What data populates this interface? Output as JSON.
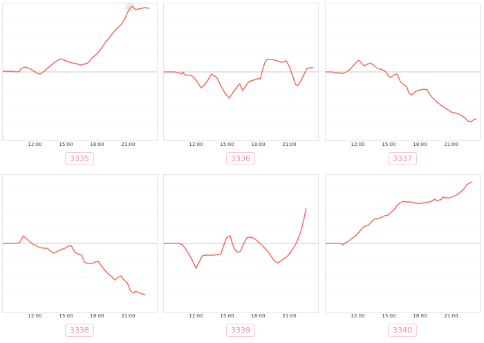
{
  "style": {
    "line_color": "#f4695f",
    "baseline_color": "#c9c9c9",
    "grid_color": "#f3f3f3",
    "plot_border_color": "#e4e4e4",
    "tick_label_color": "#3c3c3c",
    "badge_text_color": "#f48bb1",
    "badge_border_color": "#f9c7d8",
    "hover_marker_color": "#ececec",
    "background": "#ffffff"
  },
  "chart_data": [
    {
      "type": "line",
      "id_label": "3335",
      "x_tick_labels": [
        "12:00",
        "15:00",
        "18:00",
        "21:00"
      ],
      "x_tick_hours": [
        12,
        15,
        18,
        21
      ],
      "x_range_hours": [
        8.9,
        23.8
      ],
      "ylim": [
        -100,
        100
      ],
      "y_axis": "unlabeled; values relative to gray zero baseline",
      "baseline_value": 0,
      "grid": true,
      "legend": false,
      "clipped_title_fragment": "·······",
      "fragment_left_pct": 42,
      "marker": {
        "hour": 21.15,
        "value": 93
      },
      "points": [
        [
          8.9,
          1
        ],
        [
          9.4,
          1
        ],
        [
          9.8,
          1
        ],
        [
          10.2,
          0
        ],
        [
          10.5,
          1
        ],
        [
          10.7,
          5
        ],
        [
          11.0,
          7
        ],
        [
          11.3,
          6
        ],
        [
          11.6,
          4
        ],
        [
          11.9,
          1
        ],
        [
          12.2,
          -2
        ],
        [
          12.5,
          -3
        ],
        [
          12.8,
          0
        ],
        [
          13.2,
          5
        ],
        [
          13.6,
          10
        ],
        [
          14.0,
          15
        ],
        [
          14.5,
          19
        ],
        [
          14.8,
          17
        ],
        [
          15.2,
          15
        ],
        [
          15.6,
          13
        ],
        [
          16.0,
          12
        ],
        [
          16.4,
          10
        ],
        [
          16.7,
          11
        ],
        [
          17.1,
          13
        ],
        [
          17.5,
          20
        ],
        [
          17.9,
          25
        ],
        [
          18.2,
          30
        ],
        [
          18.5,
          36
        ],
        [
          18.8,
          43
        ],
        [
          19.1,
          48
        ],
        [
          19.3,
          52
        ],
        [
          19.6,
          58
        ],
        [
          20.0,
          64
        ],
        [
          20.3,
          68
        ],
        [
          20.6,
          75
        ],
        [
          20.9,
          85
        ],
        [
          21.2,
          93
        ],
        [
          21.4,
          95
        ],
        [
          21.7,
          90
        ],
        [
          22.0,
          91
        ],
        [
          22.3,
          92
        ],
        [
          22.6,
          93
        ],
        [
          23.0,
          92
        ]
      ]
    },
    {
      "type": "line",
      "id_label": "3336",
      "x_tick_labels": [
        "12:00",
        "15:00",
        "18:00",
        "21:00"
      ],
      "x_tick_hours": [
        12,
        15,
        18,
        21
      ],
      "x_range_hours": [
        8.9,
        23.8
      ],
      "ylim": [
        -100,
        100
      ],
      "y_axis": "unlabeled; values relative to gray zero baseline",
      "baseline_value": 0,
      "grid": true,
      "legend": false,
      "clipped_title_fragment": "··· ····· ···",
      "fragment_left_pct": 48,
      "points": [
        [
          8.9,
          0
        ],
        [
          9.5,
          0
        ],
        [
          9.9,
          0
        ],
        [
          10.3,
          -1
        ],
        [
          10.6,
          -3
        ],
        [
          10.75,
          0
        ],
        [
          10.9,
          -4
        ],
        [
          11.2,
          -5
        ],
        [
          11.5,
          -5
        ],
        [
          11.8,
          -8
        ],
        [
          12.1,
          -14
        ],
        [
          12.5,
          -23
        ],
        [
          12.8,
          -19
        ],
        [
          13.1,
          -13
        ],
        [
          13.5,
          -3
        ],
        [
          13.7,
          -5
        ],
        [
          14.0,
          -8
        ],
        [
          14.4,
          -20
        ],
        [
          14.8,
          -31
        ],
        [
          15.2,
          -38
        ],
        [
          15.6,
          -29
        ],
        [
          15.9,
          -23
        ],
        [
          16.2,
          -17
        ],
        [
          16.5,
          -27
        ],
        [
          16.8,
          -20
        ],
        [
          17.1,
          -14
        ],
        [
          17.5,
          -12
        ],
        [
          17.9,
          -10
        ],
        [
          18.2,
          -10
        ],
        [
          18.45,
          5
        ],
        [
          18.7,
          16
        ],
        [
          18.9,
          18
        ],
        [
          19.2,
          18
        ],
        [
          19.6,
          17
        ],
        [
          20.0,
          15
        ],
        [
          20.3,
          14
        ],
        [
          20.7,
          16
        ],
        [
          21.0,
          8
        ],
        [
          21.3,
          -5
        ],
        [
          21.6,
          -18
        ],
        [
          21.8,
          -20
        ],
        [
          22.1,
          -13
        ],
        [
          22.4,
          -4
        ],
        [
          22.7,
          5
        ],
        [
          23.0,
          6
        ],
        [
          23.3,
          6
        ]
      ]
    },
    {
      "type": "line",
      "id_label": "3337",
      "x_tick_labels": [
        "12:00",
        "15:00",
        "18:00",
        "21:00"
      ],
      "x_tick_hours": [
        12,
        15,
        18,
        21
      ],
      "x_range_hours": [
        8.9,
        23.8
      ],
      "ylim": [
        -100,
        100
      ],
      "y_axis": "unlabeled; values relative to gray zero baseline",
      "baseline_value": 0,
      "grid": true,
      "legend": false,
      "clipped_title_fragment": "····",
      "fragment_left_pct": 76,
      "points": [
        [
          8.9,
          0
        ],
        [
          9.5,
          0
        ],
        [
          9.9,
          -1
        ],
        [
          10.3,
          -2
        ],
        [
          10.6,
          -2
        ],
        [
          10.9,
          0
        ],
        [
          11.2,
          3
        ],
        [
          11.5,
          8
        ],
        [
          11.8,
          13
        ],
        [
          12.1,
          17
        ],
        [
          12.4,
          12
        ],
        [
          12.6,
          9
        ],
        [
          12.9,
          11
        ],
        [
          13.2,
          13
        ],
        [
          13.5,
          10
        ],
        [
          13.8,
          6
        ],
        [
          14.1,
          4
        ],
        [
          14.4,
          3
        ],
        [
          14.7,
          0
        ],
        [
          14.95,
          -6
        ],
        [
          15.2,
          -8
        ],
        [
          15.5,
          -4
        ],
        [
          15.8,
          -3
        ],
        [
          16.1,
          -14
        ],
        [
          16.4,
          -18
        ],
        [
          16.7,
          -21
        ],
        [
          16.95,
          -31
        ],
        [
          17.2,
          -33
        ],
        [
          17.6,
          -28
        ],
        [
          18.0,
          -26
        ],
        [
          18.4,
          -25
        ],
        [
          18.7,
          -26
        ],
        [
          19.0,
          -34
        ],
        [
          19.3,
          -39
        ],
        [
          19.6,
          -43
        ],
        [
          20.0,
          -48
        ],
        [
          20.3,
          -51
        ],
        [
          20.6,
          -54
        ],
        [
          21.0,
          -58
        ],
        [
          21.3,
          -59
        ],
        [
          21.6,
          -60
        ],
        [
          22.0,
          -63
        ],
        [
          22.3,
          -66
        ],
        [
          22.6,
          -71
        ],
        [
          22.9,
          -72
        ],
        [
          23.2,
          -69
        ],
        [
          23.4,
          -68
        ]
      ]
    },
    {
      "type": "line",
      "id_label": "3338",
      "x_tick_labels": [
        "12:00",
        "15:00",
        "18:00",
        "21:00"
      ],
      "x_tick_hours": [
        12,
        15,
        18,
        21
      ],
      "x_range_hours": [
        8.9,
        23.8
      ],
      "ylim": [
        -100,
        100
      ],
      "y_axis": "unlabeled; values relative to gray zero baseline",
      "baseline_value": 0,
      "grid": true,
      "legend": false,
      "points": [
        [
          8.9,
          0
        ],
        [
          9.3,
          0
        ],
        [
          9.7,
          0
        ],
        [
          10.1,
          0
        ],
        [
          10.5,
          1
        ],
        [
          10.9,
          11
        ],
        [
          11.1,
          8
        ],
        [
          11.4,
          4
        ],
        [
          11.7,
          0
        ],
        [
          11.9,
          -2
        ],
        [
          12.2,
          -4
        ],
        [
          12.5,
          -6
        ],
        [
          12.9,
          -7
        ],
        [
          13.2,
          -7
        ],
        [
          13.5,
          -11
        ],
        [
          13.8,
          -14
        ],
        [
          14.1,
          -12
        ],
        [
          14.5,
          -9
        ],
        [
          14.9,
          -7
        ],
        [
          15.2,
          -4
        ],
        [
          15.5,
          -3
        ],
        [
          15.8,
          -12
        ],
        [
          16.1,
          -15
        ],
        [
          16.5,
          -17
        ],
        [
          16.8,
          -27
        ],
        [
          17.1,
          -29
        ],
        [
          17.5,
          -29
        ],
        [
          17.8,
          -27
        ],
        [
          18.1,
          -26
        ],
        [
          18.4,
          -32
        ],
        [
          18.7,
          -38
        ],
        [
          19.0,
          -43
        ],
        [
          19.4,
          -48
        ],
        [
          19.7,
          -53
        ],
        [
          20.0,
          -49
        ],
        [
          20.3,
          -47
        ],
        [
          20.6,
          -53
        ],
        [
          20.9,
          -57
        ],
        [
          21.2,
          -68
        ],
        [
          21.5,
          -72
        ],
        [
          21.7,
          -69
        ],
        [
          22.0,
          -71
        ],
        [
          22.3,
          -73
        ],
        [
          22.6,
          -74
        ]
      ]
    },
    {
      "type": "line",
      "id_label": "3339",
      "x_tick_labels": [
        "12:00",
        "15:00",
        "18:00",
        "21:00"
      ],
      "x_tick_hours": [
        12,
        15,
        18,
        21
      ],
      "x_range_hours": [
        8.9,
        23.8
      ],
      "ylim": [
        -100,
        100
      ],
      "y_axis": "unlabeled; values relative to gray zero baseline",
      "baseline_value": 0,
      "grid": true,
      "legend": false,
      "clipped_title_fragment": "·· ··",
      "fragment_left_pct": 50,
      "points": [
        [
          8.9,
          0
        ],
        [
          9.5,
          0
        ],
        [
          9.9,
          0
        ],
        [
          10.3,
          0
        ],
        [
          10.7,
          -2
        ],
        [
          11.0,
          -8
        ],
        [
          11.3,
          -15
        ],
        [
          11.7,
          -26
        ],
        [
          12.0,
          -36
        ],
        [
          12.3,
          -27
        ],
        [
          12.6,
          -18
        ],
        [
          12.9,
          -17
        ],
        [
          13.3,
          -17
        ],
        [
          13.7,
          -17
        ],
        [
          14.1,
          -16
        ],
        [
          14.4,
          -15
        ],
        [
          14.6,
          -6
        ],
        [
          14.9,
          7
        ],
        [
          15.1,
          10
        ],
        [
          15.3,
          11
        ],
        [
          15.5,
          0
        ],
        [
          15.7,
          -8
        ],
        [
          16.0,
          -13
        ],
        [
          16.3,
          -11
        ],
        [
          16.6,
          0
        ],
        [
          16.9,
          8
        ],
        [
          17.2,
          9
        ],
        [
          17.5,
          8
        ],
        [
          17.8,
          5
        ],
        [
          18.1,
          1
        ],
        [
          18.4,
          -3
        ],
        [
          18.7,
          -8
        ],
        [
          19.0,
          -13
        ],
        [
          19.3,
          -20
        ],
        [
          19.6,
          -26
        ],
        [
          19.9,
          -28
        ],
        [
          20.2,
          -25
        ],
        [
          20.6,
          -21
        ],
        [
          20.9,
          -17
        ],
        [
          21.2,
          -11
        ],
        [
          21.5,
          -4
        ],
        [
          21.8,
          5
        ],
        [
          22.1,
          17
        ],
        [
          22.4,
          35
        ],
        [
          22.6,
          50
        ]
      ]
    },
    {
      "type": "line",
      "id_label": "3340",
      "x_tick_labels": [
        "12:00",
        "15:00",
        "18:00",
        "21:00"
      ],
      "x_tick_hours": [
        12,
        15,
        18,
        21
      ],
      "x_range_hours": [
        8.9,
        23.8
      ],
      "ylim": [
        -100,
        100
      ],
      "y_axis": "unlabeled; values relative to gray zero baseline",
      "baseline_value": 0,
      "grid": true,
      "legend": false,
      "points": [
        [
          8.9,
          0
        ],
        [
          9.5,
          0
        ],
        [
          9.9,
          0
        ],
        [
          10.3,
          0
        ],
        [
          10.6,
          -2
        ],
        [
          10.8,
          1
        ],
        [
          11.1,
          3
        ],
        [
          11.4,
          7
        ],
        [
          11.8,
          11
        ],
        [
          12.1,
          16
        ],
        [
          12.4,
          22
        ],
        [
          12.7,
          25
        ],
        [
          13.0,
          26
        ],
        [
          13.3,
          31
        ],
        [
          13.6,
          35
        ],
        [
          13.9,
          36
        ],
        [
          14.2,
          37
        ],
        [
          14.6,
          40
        ],
        [
          14.9,
          41
        ],
        [
          15.2,
          45
        ],
        [
          15.5,
          49
        ],
        [
          15.8,
          55
        ],
        [
          16.1,
          59
        ],
        [
          16.4,
          61
        ],
        [
          16.7,
          60
        ],
        [
          17.1,
          60
        ],
        [
          17.4,
          59
        ],
        [
          17.7,
          58
        ],
        [
          18.1,
          58
        ],
        [
          18.4,
          59
        ],
        [
          18.7,
          59
        ],
        [
          19.1,
          61
        ],
        [
          19.4,
          64
        ],
        [
          19.6,
          62
        ],
        [
          20.0,
          63
        ],
        [
          20.2,
          67
        ],
        [
          20.5,
          66
        ],
        [
          20.9,
          66
        ],
        [
          21.2,
          68
        ],
        [
          21.5,
          70
        ],
        [
          21.8,
          73
        ],
        [
          22.2,
          78
        ],
        [
          22.5,
          85
        ],
        [
          23.0,
          89
        ]
      ]
    }
  ]
}
